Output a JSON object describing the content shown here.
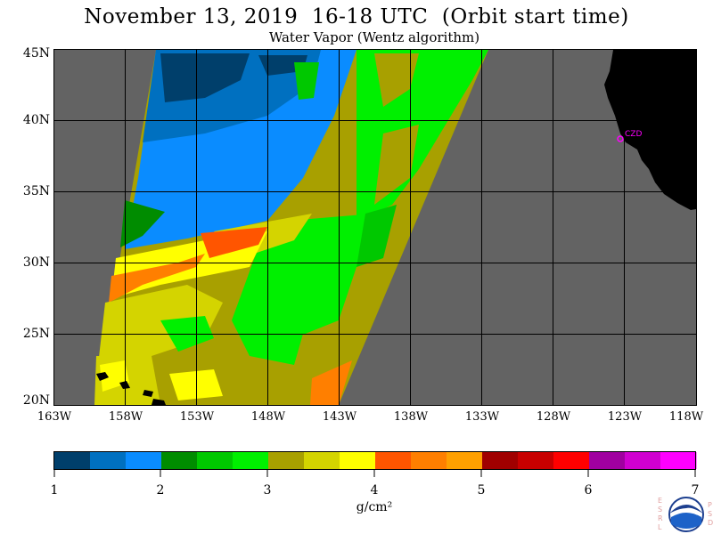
{
  "title": "November 13, 2019  16-18 UTC  (Orbit start time)",
  "subtitle": "Water Vapor (Wentz algorithm)",
  "lat_labels": [
    "45N",
    "40N",
    "35N",
    "30N",
    "25N",
    "20N"
  ],
  "lon_labels": [
    "163W",
    "158W",
    "153W",
    "148W",
    "143W",
    "138W",
    "133W",
    "128W",
    "123W",
    "118W"
  ],
  "station_label": "CZD",
  "colorbar": {
    "colors": [
      "#003f6b",
      "#0070c0",
      "#0a8cff",
      "#008c00",
      "#00c800",
      "#00f000",
      "#a8a000",
      "#d4d400",
      "#ffff00",
      "#ff5500",
      "#ff7f00",
      "#ffa000",
      "#a00000",
      "#c80000",
      "#ff0000",
      "#a000a0",
      "#d000d0",
      "#ff00ff"
    ],
    "ticks": [
      "1",
      "2",
      "3",
      "4",
      "5",
      "6",
      "7"
    ],
    "unit": "g/cm²"
  },
  "logo": {
    "left_letters": [
      "E",
      "S",
      "R",
      "L"
    ],
    "right_letters": [
      "P",
      "S",
      "D"
    ],
    "name": "noaa-logo"
  },
  "colors": {
    "land": "#000000",
    "no_data": "#636363",
    "grid": "#000000",
    "station": "#ff00ff"
  }
}
